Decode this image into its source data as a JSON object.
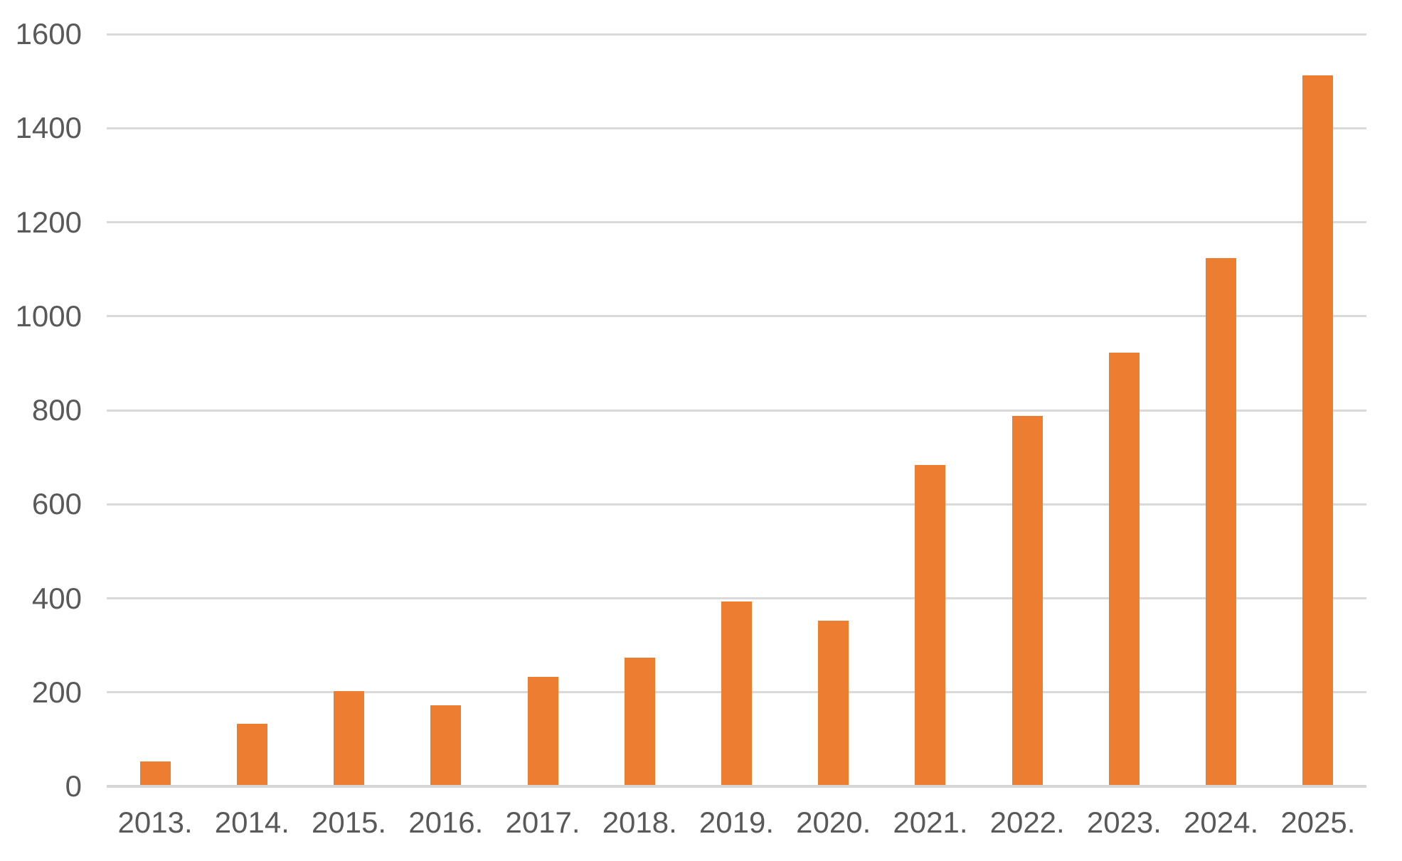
{
  "chart_data": {
    "type": "bar",
    "title": "",
    "xlabel": "",
    "ylabel": "",
    "categories": [
      "2013.",
      "2014.",
      "2015.",
      "2016.",
      "2017.",
      "2018.",
      "2019.",
      "2020.",
      "2021.",
      "2022.",
      "2023.",
      "2024.",
      "2025."
    ],
    "values": [
      50,
      130,
      200,
      170,
      230,
      270,
      390,
      350,
      680,
      785,
      920,
      1120,
      1510
    ],
    "series_name": "",
    "ylim": [
      0,
      1600
    ],
    "ytick_interval": 200,
    "yticks": [
      0,
      200,
      400,
      600,
      800,
      1000,
      1200,
      1400,
      1600
    ],
    "ytick_labels": [
      "0",
      "200",
      "400",
      "600",
      "800",
      "1000",
      "1200",
      "1400",
      "1600"
    ],
    "grid": "horizontal",
    "legend": "none",
    "colors": {
      "bar": "#ED7D31",
      "gridline": "#D9D9D9",
      "axis_line": "#D6D6D6",
      "tick_text": "#595959",
      "background": "#FFFFFF"
    }
  }
}
